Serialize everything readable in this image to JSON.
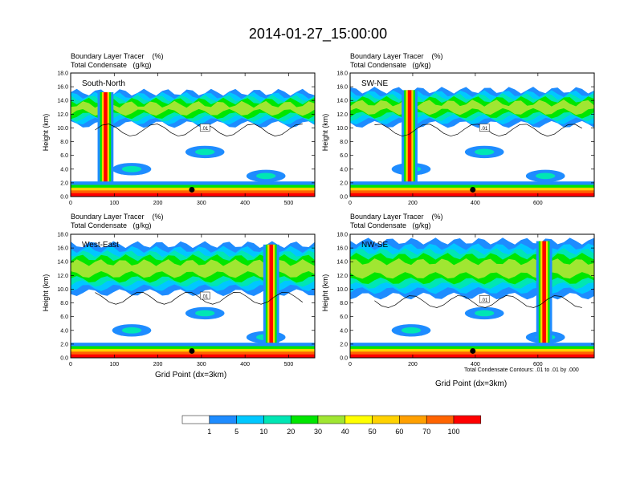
{
  "page_title": "2014-01-27_15:00:00",
  "header_line1": "Boundary Layer Tracer    (%)",
  "header_line2": "Total Condensate   (g/kg)",
  "ylabel": "Height (km)",
  "xlabel": "Grid Point (dx=3km)",
  "contour_note": "Total Condensate Contours: .01 to .01 by .000",
  "contour_label": ".01",
  "colors": {
    "levels": [
      "#ffffff",
      "#1e8cff",
      "#00c8ff",
      "#00e6b4",
      "#00e600",
      "#a0e632",
      "#ffff00",
      "#ffd200",
      "#ffa000",
      "#ff6400",
      "#ff0000"
    ],
    "frame": "#000000"
  },
  "colorbar": {
    "labels": [
      "1",
      "5",
      "10",
      "20",
      "30",
      "40",
      "50",
      "60",
      "70",
      "100"
    ]
  },
  "chart_data": [
    {
      "type": "heatmap",
      "panel": "South-North",
      "title": "South-North",
      "xlabel": "",
      "ylabel": "Height (km)",
      "xlim": [
        0,
        560
      ],
      "ylim": [
        0,
        18
      ],
      "xticks": [
        "0",
        "100",
        "200",
        "300",
        "400",
        "500"
      ],
      "yticks": [
        "0.0",
        "2.0",
        "4.0",
        "6.0",
        "8.0",
        "10.0",
        "12.0",
        "14.0",
        "16.0",
        "18.0"
      ],
      "marker_x": 278,
      "anvil_y": [
        10.5,
        15.2
      ],
      "tower_x": 80
    },
    {
      "type": "heatmap",
      "panel": "SW-NE",
      "title": "SW-NE",
      "xlabel": "",
      "ylabel": "Height (km)",
      "xlim": [
        0,
        780
      ],
      "ylim": [
        0,
        18
      ],
      "xticks": [
        "0",
        "200",
        "400",
        "600"
      ],
      "yticks": [
        "0.0",
        "2.0",
        "4.0",
        "6.0",
        "8.0",
        "10.0",
        "12.0",
        "14.0",
        "16.0",
        "18.0"
      ],
      "marker_x": 392,
      "anvil_y": [
        10.5,
        15.5
      ],
      "tower_x": 190
    },
    {
      "type": "heatmap",
      "panel": "West-East",
      "title": "West-East",
      "xlabel": "Grid Point (dx=3km)",
      "ylabel": "Height (km)",
      "xlim": [
        0,
        560
      ],
      "ylim": [
        0,
        18
      ],
      "xticks": [
        "0",
        "100",
        "200",
        "300",
        "400",
        "500"
      ],
      "yticks": [
        "0.0",
        "2.0",
        "4.0",
        "6.0",
        "8.0",
        "10.0",
        "12.0",
        "14.0",
        "16.0",
        "18.0"
      ],
      "marker_x": 278,
      "anvil_y": [
        9.5,
        16.5
      ],
      "tower_x": 460
    },
    {
      "type": "heatmap",
      "panel": "NW-SE",
      "title": "NW-SE",
      "xlabel": "Grid Point (dx=3km)",
      "ylabel": "Height (km)",
      "xlim": [
        0,
        780
      ],
      "ylim": [
        0,
        18
      ],
      "xticks": [
        "0",
        "200",
        "400",
        "600"
      ],
      "yticks": [
        "0.0",
        "2.0",
        "4.0",
        "6.0",
        "8.0",
        "10.0",
        "12.0",
        "14.0",
        "16.0",
        "18.0"
      ],
      "marker_x": 392,
      "anvil_y": [
        9.0,
        17.0
      ],
      "tower_x": 620
    }
  ]
}
